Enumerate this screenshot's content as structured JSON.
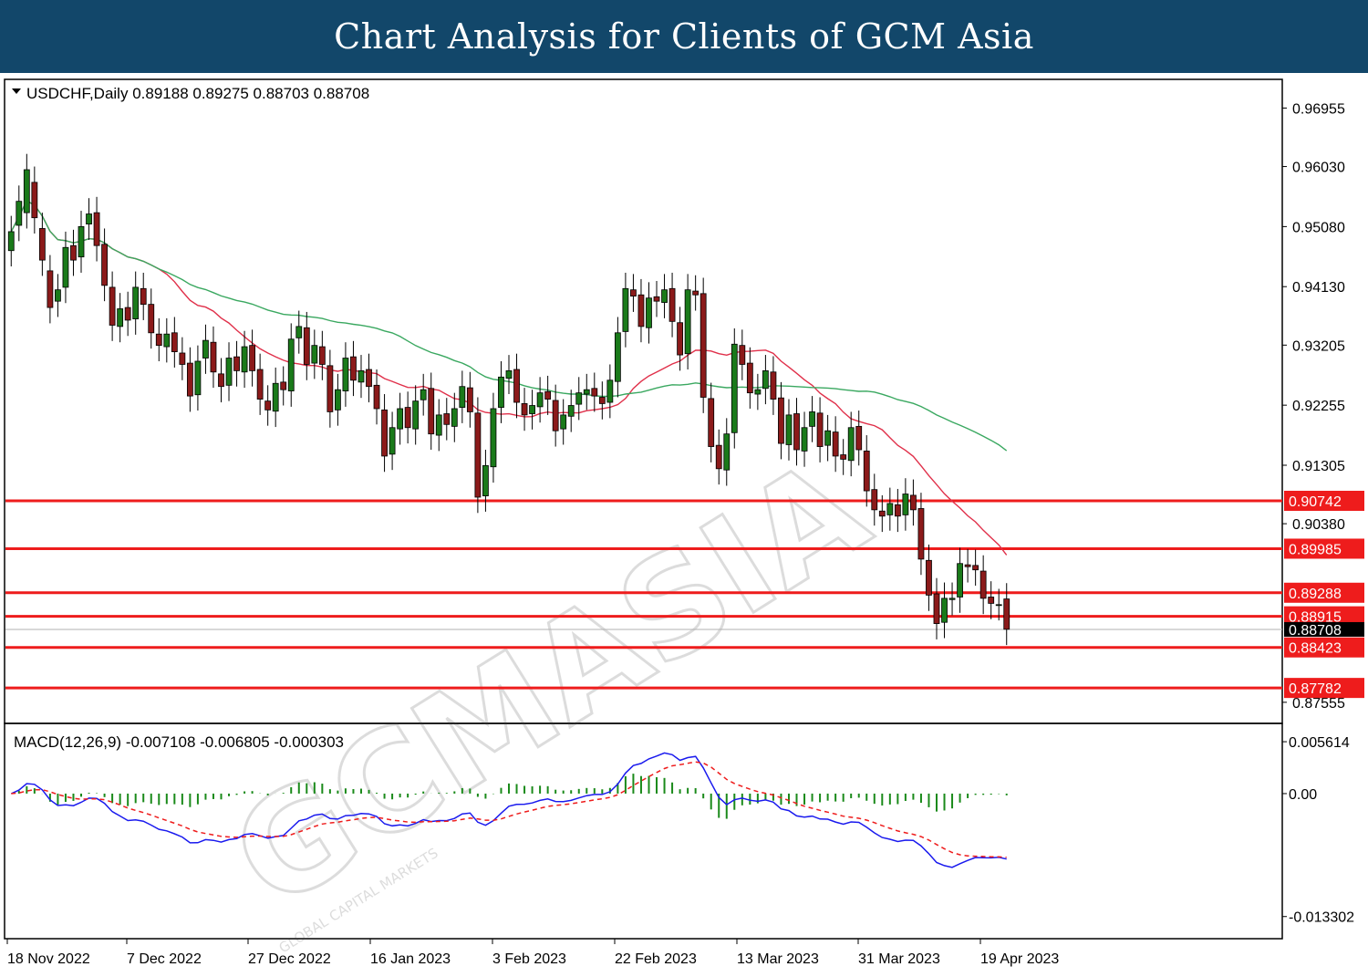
{
  "banner": {
    "title": "Chart Analysis for Clients of GCM Asia"
  },
  "chart_data": [
    {
      "type": "candlestick",
      "title": "USDCHF,Daily",
      "ohlc_label": "0.89188 0.89275 0.88703 0.88708",
      "ohlc": {
        "open": 0.89188,
        "high": 0.89275,
        "low": 0.88703,
        "close": 0.88708
      },
      "ylim": [
        0.8725,
        0.9738
      ],
      "y_ticks": [
        "0.96955",
        "0.96030",
        "0.95080",
        "0.94130",
        "0.93205",
        "0.92255",
        "0.91305",
        "0.90380",
        "0.87555"
      ],
      "x_ticks": [
        "18 Nov 2022",
        "7 Dec 2022",
        "27 Dec 2022",
        "16 Jan 2023",
        "3 Feb 2023",
        "22 Feb 2023",
        "13 Mar 2023",
        "31 Mar 2023",
        "19 Apr 2023"
      ],
      "current_price": "0.88708",
      "levels": [
        "0.90742",
        "0.89985",
        "0.89288",
        "0.88915",
        "0.88423",
        "0.87782"
      ],
      "colors": {
        "bull": "#1a7a1a",
        "bear": "#8b1a1a",
        "ma_fast": "#e0304a",
        "ma_slow": "#3aa860",
        "level": "#ee1c1c",
        "tag": "#ee1c1c"
      },
      "candles_close": [
        0.95,
        0.9548,
        0.9598,
        0.9522,
        0.9455,
        0.938,
        0.9408,
        0.9475,
        0.9455,
        0.9508,
        0.9528,
        0.9478,
        0.9415,
        0.9352,
        0.9378,
        0.936,
        0.9412,
        0.9385,
        0.934,
        0.932,
        0.9338,
        0.931,
        0.929,
        0.924,
        0.9295,
        0.9328,
        0.9278,
        0.9255,
        0.93,
        0.928,
        0.9318,
        0.928,
        0.9235,
        0.9218,
        0.926,
        0.925,
        0.933,
        0.935,
        0.929,
        0.932,
        0.929,
        0.9215,
        0.925,
        0.93,
        0.9265,
        0.928,
        0.9255,
        0.922,
        0.9145,
        0.919,
        0.922,
        0.919,
        0.9232,
        0.925,
        0.918,
        0.921,
        0.9195,
        0.922,
        0.9255,
        0.9215,
        0.908,
        0.913,
        0.922,
        0.927,
        0.928,
        0.923,
        0.921,
        0.9225,
        0.9245,
        0.9235,
        0.9185,
        0.921,
        0.9225,
        0.9245,
        0.925,
        0.924,
        0.9228,
        0.9265,
        0.934,
        0.941,
        0.9398,
        0.935,
        0.9395,
        0.939,
        0.9408,
        0.9358,
        0.9305,
        0.9408,
        0.94,
        0.9238,
        0.916,
        0.9125,
        0.918,
        0.9322,
        0.929,
        0.9245,
        0.925,
        0.928,
        0.9235,
        0.9165,
        0.921,
        0.9155,
        0.919,
        0.9215,
        0.916,
        0.9185,
        0.9145,
        0.914,
        0.919,
        0.9155,
        0.909,
        0.906,
        0.905,
        0.907,
        0.905,
        0.9085,
        0.906,
        0.8982,
        0.8925,
        0.888,
        0.892,
        0.892,
        0.8975,
        0.897,
        0.8965,
        0.892,
        0.8912,
        0.891,
        0.8871
      ],
      "candles_open": [
        0.947,
        0.951,
        0.953,
        0.9578,
        0.9505,
        0.9438,
        0.939,
        0.9412,
        0.9478,
        0.946,
        0.9512,
        0.953,
        0.948,
        0.9412,
        0.935,
        0.938,
        0.9362,
        0.941,
        0.9385,
        0.9338,
        0.9318,
        0.934,
        0.9308,
        0.9292,
        0.9242,
        0.93,
        0.9325,
        0.9275,
        0.9257,
        0.9302,
        0.9278,
        0.932,
        0.9282,
        0.9232,
        0.9216,
        0.9262,
        0.9248,
        0.9332,
        0.9348,
        0.9292,
        0.9318,
        0.9288,
        0.9218,
        0.9248,
        0.9302,
        0.9262,
        0.9282,
        0.9257,
        0.9218,
        0.9148,
        0.9188,
        0.9222,
        0.9188,
        0.9234,
        0.9252,
        0.9178,
        0.9212,
        0.9192,
        0.9222,
        0.9253,
        0.9213,
        0.9082,
        0.9128,
        0.9222,
        0.9268,
        0.9282,
        0.9228,
        0.9212,
        0.9223,
        0.9247,
        0.9233,
        0.9188,
        0.9208,
        0.9227,
        0.9243,
        0.9252,
        0.9238,
        0.923,
        0.9263,
        0.9342,
        0.9408,
        0.94,
        0.9348,
        0.9397,
        0.9388,
        0.941,
        0.9356,
        0.9307,
        0.9406,
        0.9402,
        0.9236,
        0.9162,
        0.9123,
        0.9182,
        0.932,
        0.9292,
        0.9243,
        0.9252,
        0.9278,
        0.9237,
        0.9163,
        0.9212,
        0.9153,
        0.9192,
        0.9213,
        0.9162,
        0.9183,
        0.9147,
        0.9138,
        0.9192,
        0.9153,
        0.9092,
        0.9058,
        0.9052,
        0.9068,
        0.9052,
        0.9083,
        0.9062,
        0.898,
        0.8927,
        0.8882,
        0.8918,
        0.8922,
        0.8973,
        0.8972,
        0.8963,
        0.8922,
        0.891,
        0.8919
      ]
    },
    {
      "type": "macd",
      "title": "MACD(12,26,9)",
      "values_label": "-0.007108 -0.006805 -0.000303",
      "values": {
        "macd": -0.007108,
        "signal": -0.006805,
        "histogram": -0.000303
      },
      "ylim": [
        -0.0155,
        0.0072
      ],
      "y_ticks": [
        "0.005614",
        "0.00",
        "-0.013302"
      ],
      "colors": {
        "macd_line": "#1a1aee",
        "signal_line": "#ee1c1c",
        "histogram": "#1a8a1a"
      }
    }
  ],
  "watermark": {
    "brand": "GCMASIA",
    "tagline": "GLOBAL CAPITAL MARKETS"
  }
}
